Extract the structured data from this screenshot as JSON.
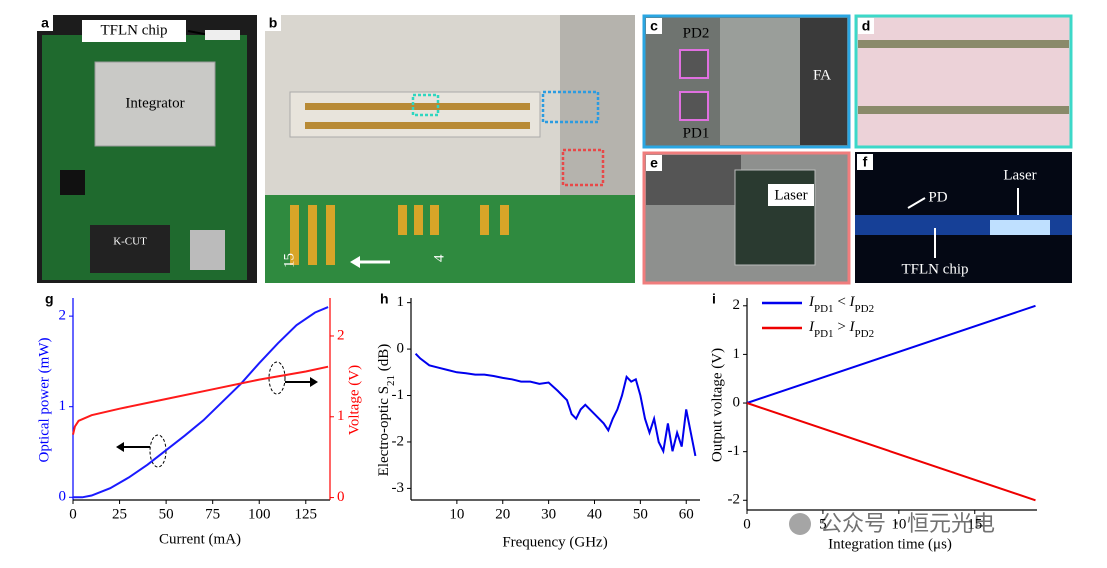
{
  "figure": {
    "panels": {
      "a": {
        "label": "a",
        "chip": "TFLN chip",
        "integrator": "Integrator",
        "module": "K-CUT"
      },
      "b": {
        "label": "b",
        "pin_left": "15",
        "pin_right": "4"
      },
      "c": {
        "label": "c",
        "pd2": "PD2",
        "pd1": "PD1",
        "fa": "FA"
      },
      "d": {
        "label": "d"
      },
      "e": {
        "label": "e",
        "laser": "Laser"
      },
      "f": {
        "label": "f",
        "pd": "PD",
        "laser": "Laser",
        "chip": "TFLN chip"
      }
    },
    "watermark": "公众号 · 恒元光电"
  },
  "chart_data": [
    {
      "type": "line",
      "panel_label": "g",
      "xlabel": "Current (mA)",
      "ylabel": "Optical power (mW)",
      "y2label": "Voltage (V)",
      "xlim": [
        0,
        138
      ],
      "xticks": [
        0,
        25,
        50,
        75,
        100,
        125
      ],
      "ylim": [
        -0.03,
        2.2
      ],
      "yticks": [
        0,
        1,
        2
      ],
      "y2lim": [
        -0.03,
        2.47
      ],
      "y2ticks": [
        0,
        1,
        2
      ],
      "ycolor": "#0000ff",
      "y2color": "#ff0000",
      "series": [
        {
          "color": "#1a1aff",
          "x": [
            0,
            5,
            10,
            20,
            30,
            40,
            50,
            60,
            70,
            80,
            90,
            100,
            110,
            120,
            130,
            137
          ],
          "values": [
            0,
            0,
            0.02,
            0.1,
            0.22,
            0.36,
            0.52,
            0.68,
            0.85,
            1.05,
            1.25,
            1.48,
            1.7,
            1.9,
            2.04,
            2.1
          ]
        },
        {
          "color": "#ff1a1a",
          "axis": "y2",
          "x": [
            0,
            1,
            3,
            10,
            25,
            50,
            75,
            100,
            125,
            137
          ],
          "values": [
            0.78,
            0.88,
            0.95,
            1.02,
            1.1,
            1.22,
            1.34,
            1.46,
            1.56,
            1.62
          ]
        }
      ]
    },
    {
      "type": "line",
      "panel_label": "h",
      "xlabel": "Frequency (GHz)",
      "ylabel": [
        "Electro-optic S",
        "21",
        " (dB)"
      ],
      "xlim": [
        0,
        63
      ],
      "xticks": [
        10,
        20,
        30,
        40,
        50,
        60
      ],
      "ylim": [
        -3.25,
        1.1
      ],
      "yticks": [
        -3,
        -2,
        -1,
        0,
        1
      ],
      "series": [
        {
          "color": "#0000ee",
          "x": [
            1,
            2,
            4,
            6,
            8,
            10,
            12,
            14,
            16,
            18,
            20,
            22,
            24,
            26,
            28,
            30,
            32,
            34,
            35,
            36,
            37,
            38,
            40,
            42,
            43,
            44,
            45,
            46,
            47,
            48,
            49,
            50,
            51,
            52,
            53,
            54,
            55,
            56,
            57,
            58,
            59,
            60,
            61,
            62
          ],
          "values": [
            -0.1,
            -0.2,
            -0.35,
            -0.4,
            -0.45,
            -0.5,
            -0.52,
            -0.55,
            -0.55,
            -0.58,
            -0.62,
            -0.65,
            -0.7,
            -0.7,
            -0.75,
            -0.72,
            -0.9,
            -1.1,
            -1.4,
            -1.5,
            -1.3,
            -1.2,
            -1.4,
            -1.6,
            -1.75,
            -1.5,
            -1.3,
            -1.0,
            -0.6,
            -0.7,
            -0.65,
            -1.0,
            -1.5,
            -1.8,
            -1.5,
            -2.0,
            -2.2,
            -1.6,
            -2.2,
            -1.8,
            -2.1,
            -1.3,
            -1.8,
            -2.3
          ]
        }
      ]
    },
    {
      "type": "line",
      "panel_label": "i",
      "xlabel": "Integration time (μs)",
      "ylabel": "Output voltage (V)",
      "xlim": [
        0,
        19.1
      ],
      "xticks": [
        0,
        5,
        10,
        15
      ],
      "ylim": [
        -2.2,
        2.16
      ],
      "yticks": [
        -2,
        -1,
        0,
        1,
        2
      ],
      "legend": "upper left",
      "series": [
        {
          "name": [
            "I",
            "PD1",
            " < ",
            "I",
            "PD2"
          ],
          "color": "#0000ee",
          "x": [
            0,
            19
          ],
          "values": [
            0,
            2.0
          ]
        },
        {
          "name": [
            "I",
            "PD1",
            " > ",
            "I",
            "PD2"
          ],
          "color": "#ee0000",
          "x": [
            0,
            19
          ],
          "values": [
            0,
            -2.0
          ]
        }
      ]
    }
  ]
}
